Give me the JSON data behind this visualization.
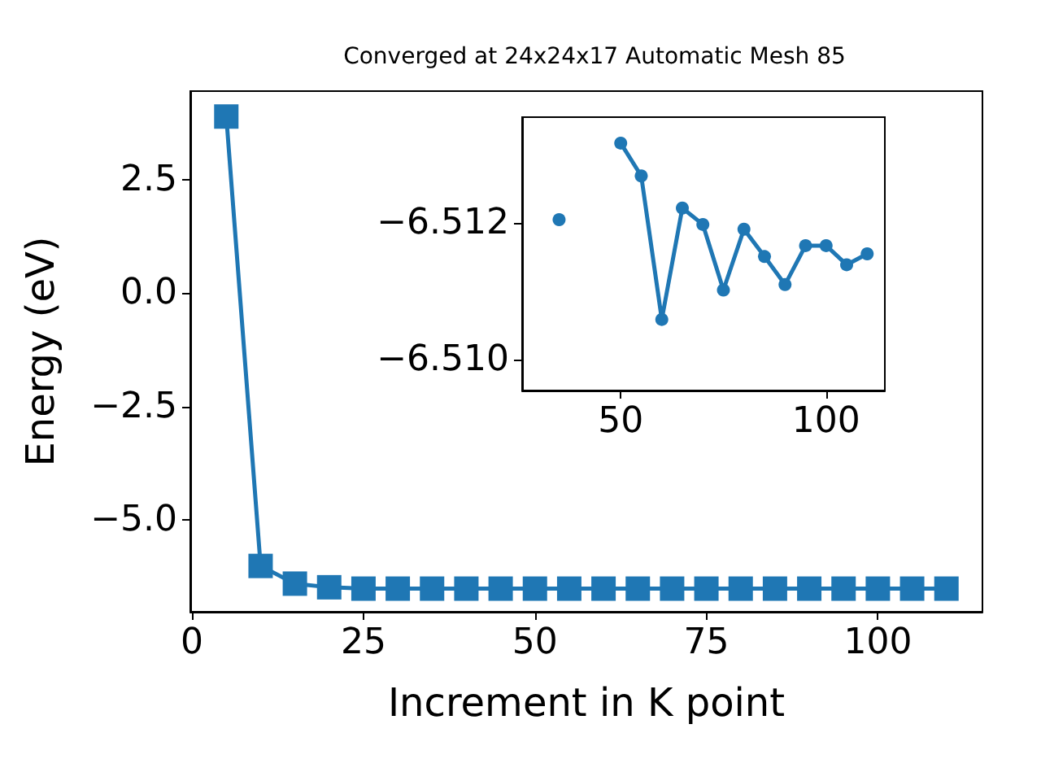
{
  "chart_data": [
    {
      "type": "line",
      "title": "Converged at 24x24x17 Automatic Mesh 85",
      "xlabel": "Increment in K point",
      "ylabel": "Energy (eV)",
      "x": [
        5,
        10,
        15,
        20,
        25,
        30,
        35,
        40,
        45,
        50,
        55,
        60,
        65,
        70,
        75,
        80,
        85,
        90,
        95,
        100,
        105,
        110
      ],
      "series": [
        {
          "color": "#1f77b4",
          "values": [
            3.89,
            -6.01,
            -6.4,
            -6.48,
            -6.51,
            -6.51,
            -6.51,
            -6.51,
            -6.51,
            -6.51,
            -6.51,
            -6.51,
            -6.51,
            -6.51,
            -6.51,
            -6.51,
            -6.51,
            -6.51,
            -6.51,
            -6.51,
            -6.51,
            -6.51
          ]
        }
      ],
      "xlim": [
        -0.25,
        115.25
      ],
      "ylim": [
        -7.02,
        4.45
      ],
      "xticks": [
        0,
        25,
        50,
        75,
        100
      ],
      "yticks": [
        {
          "value": -5,
          "label": "−5.0"
        },
        {
          "value": -2.5,
          "label": "−2.5"
        },
        {
          "value": 0,
          "label": "0.0"
        },
        {
          "value": 2.5,
          "label": "2.5"
        }
      ],
      "marker": "square",
      "grid": false
    },
    {
      "type": "line",
      "x": [
        35,
        40,
        45,
        50,
        55,
        60,
        65,
        70,
        75,
        80,
        85,
        90,
        95,
        100,
        105,
        110
      ],
      "series": [
        {
          "color": "#1f77b4",
          "values": [
            -6.51205,
            null,
            null,
            -6.51317,
            -6.51269,
            -6.51059,
            -6.51222,
            -6.51198,
            -6.51102,
            -6.51191,
            -6.51151,
            -6.5111,
            -6.51167,
            -6.51167,
            -6.51139,
            -6.51155
          ]
        }
      ],
      "xlim": [
        26,
        114.3
      ],
      "ylim": [
        -6.50955,
        -6.51355
      ],
      "xticks": [
        50,
        100
      ],
      "yticks": [
        {
          "value": -6.512,
          "label": "−6.512"
        },
        {
          "value": -6.51,
          "label": "−6.510"
        }
      ],
      "marker": "circle",
      "grid": false
    }
  ]
}
